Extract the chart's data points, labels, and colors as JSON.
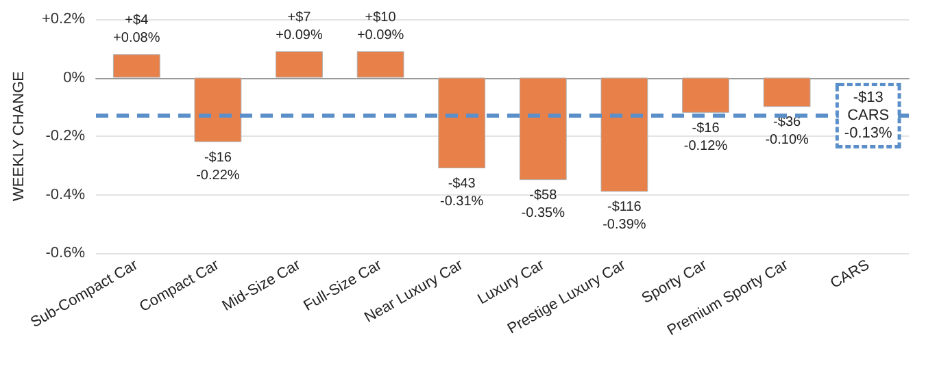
{
  "chart_data": {
    "type": "bar",
    "ylabel": "WEEKLY CHANGE",
    "categories": [
      "Sub-Compact Car",
      "Compact Car",
      "Mid-Size Car",
      "Full-Size Car",
      "Near Luxury Car",
      "Luxury Car",
      "Prestige Luxury Car",
      "Sporty Car",
      "Premium Sporty Car",
      "CARS"
    ],
    "values": [
      0.08,
      -0.22,
      0.09,
      0.09,
      -0.31,
      -0.35,
      -0.39,
      -0.12,
      -0.1,
      null
    ],
    "value_labels": [
      "+$4\n+0.08%",
      "-$16\n-0.22%",
      "+$7\n+0.09%",
      "+$10\n+0.09%",
      "-$43\n-0.31%",
      "-$58\n-0.35%",
      "-$116\n-0.39%",
      "-$16\n-0.12%",
      "-$36\n-0.10%",
      null
    ],
    "color": "#e8804a",
    "ylim": [
      -0.6,
      0.2
    ],
    "yticks": [
      {
        "value": 0.2,
        "label": "+0.2%"
      },
      {
        "value": 0,
        "label": "0%"
      },
      {
        "value": -0.2,
        "label": "-0.2%"
      },
      {
        "value": -0.4,
        "label": "-0.4%"
      },
      {
        "value": -0.6,
        "label": "-0.6%"
      }
    ],
    "grid": "y",
    "ref_lines": [
      {
        "axis": "y",
        "value": -0.13,
        "label": null,
        "color": "#5b8fc9",
        "line_style": "dashed"
      }
    ],
    "annotations": [
      {
        "text": "-$13\nCARS\n-0.13%",
        "x": "CARS",
        "y": -0.13
      }
    ]
  }
}
